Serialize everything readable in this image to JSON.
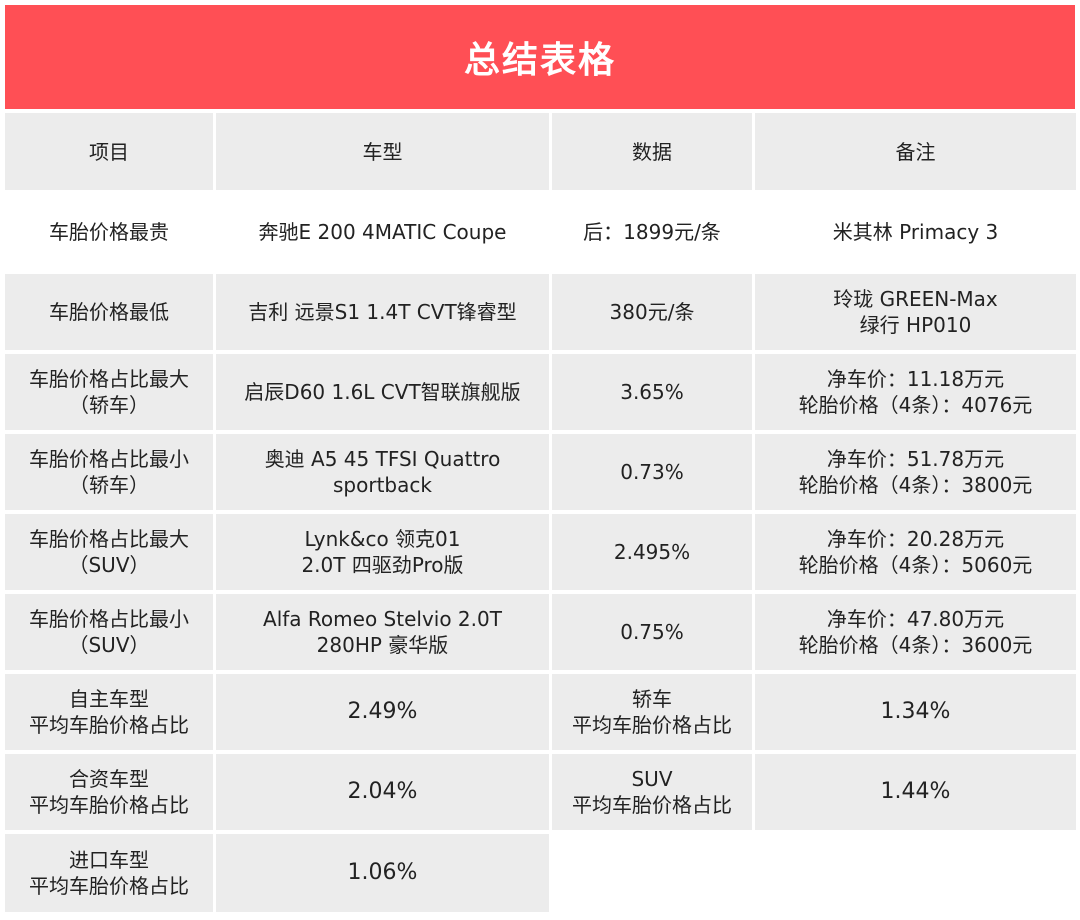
{
  "title": "总结表格",
  "headers": [
    "项目",
    "车型",
    "数据",
    "备注"
  ],
  "rows": [
    [
      "车胎价格最贵",
      "奔驰E 200 4MATIC Coupe",
      "后：1899元/条",
      "米其林 Primacy 3"
    ],
    [
      "车胎价格最低",
      "吉利 远景S1 1.4T CVT锋睿型",
      "380元/条",
      "玲珑 GREEN-Max\n绿行 HP010"
    ],
    [
      "车胎价格占比最大\n（轿车）",
      "启辰D60 1.6L CVT智联旗舰版",
      "3.65%",
      "净车价：11.18万元\n轮胎价格（4条）：4076元"
    ],
    [
      "车胎价格占比最小\n（轿车）",
      "奥迪 A5 45 TFSI Quattro\nsportback",
      "0.73%",
      "净车价：51.78万元\n轮胎价格（4条）：3800元"
    ],
    [
      "车胎价格占比最大\n（SUV）",
      "Lynk&co 领克01\n2.0T 四驱劲Pro版",
      "2.495%",
      "净车价：20.28万元\n轮胎价格（4条）：5060元"
    ],
    [
      "车胎价格占比最小\n（SUV）",
      "Alfa Romeo Stelvio 2.0T\n280HP 豪华版",
      "0.75%",
      "净车价：47.80万元\n轮胎价格（4条）：3600元"
    ]
  ],
  "averages": [
    [
      "自主车型\n平均车胎价格占比",
      "2.49%",
      "轿车\n平均车胎价格占比",
      "1.34%"
    ],
    [
      "合资车型\n平均车胎价格占比",
      "2.04%",
      "SUV\n平均车胎价格占比",
      "1.44%"
    ],
    [
      "进口车型\n平均车胎价格占比",
      "1.06%",
      "",
      ""
    ]
  ],
  "colors": {
    "title_bg": "#ff4f55",
    "shade": "#ececec"
  }
}
